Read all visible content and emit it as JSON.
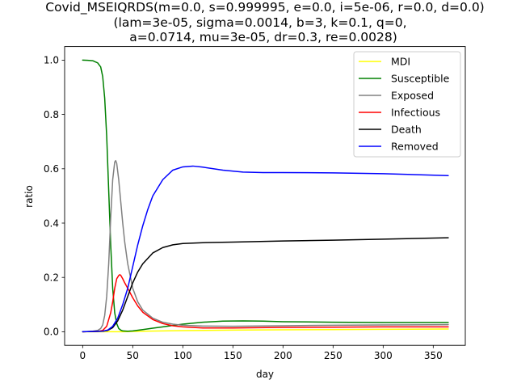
{
  "chart_data": {
    "type": "line",
    "title_lines": [
      "Covid_MSEIQRDS(m=0.0, s=0.999995, e=0.0, i=5e-06, r=0.0, d=0.0)",
      "(lam=3e-05, sigma=0.0014, b=3, k=0.1, q=0,",
      "a=0.0714, mu=3e-05, dr=0.3, re=0.0028)"
    ],
    "xlabel": "day",
    "ylabel": "ratio",
    "xlim": [
      -18,
      382
    ],
    "ylim": [
      -0.05,
      1.05
    ],
    "xticks": [
      0,
      50,
      100,
      150,
      200,
      250,
      300,
      350
    ],
    "yticks": [
      0.0,
      0.2,
      0.4,
      0.6,
      0.8,
      1.0
    ],
    "ytick_labels": [
      "0.0",
      "0.2",
      "0.4",
      "0.6",
      "0.8",
      "1.0"
    ],
    "grid": false,
    "legend_position": "top-right",
    "series": [
      {
        "name": "MDI",
        "color": "#ffff00",
        "x": [
          0,
          20,
          40,
          60,
          100,
          150,
          200,
          250,
          300,
          365
        ],
        "y": [
          0.0,
          0.0,
          0.0,
          0.002,
          0.004,
          0.006,
          0.007,
          0.008,
          0.009,
          0.01
        ]
      },
      {
        "name": "Susceptible",
        "color": "#008000",
        "x": [
          0,
          5,
          10,
          15,
          18,
          20,
          22,
          24,
          26,
          28,
          30,
          32,
          34,
          36,
          38,
          40,
          45,
          50,
          60,
          70,
          80,
          90,
          100,
          120,
          140,
          160,
          180,
          200,
          250,
          300,
          365
        ],
        "y": [
          1.0,
          0.9995,
          0.998,
          0.99,
          0.975,
          0.94,
          0.86,
          0.72,
          0.52,
          0.32,
          0.16,
          0.07,
          0.03,
          0.012,
          0.006,
          0.003,
          0.002,
          0.003,
          0.008,
          0.013,
          0.018,
          0.023,
          0.028,
          0.035,
          0.039,
          0.04,
          0.039,
          0.037,
          0.035,
          0.034,
          0.034
        ]
      },
      {
        "name": "Exposed",
        "color": "#808080",
        "x": [
          0,
          10,
          15,
          18,
          20,
          22,
          24,
          26,
          28,
          30,
          32,
          33,
          34,
          36,
          38,
          40,
          42,
          45,
          50,
          55,
          60,
          70,
          80,
          90,
          100,
          120,
          150,
          200,
          250,
          300,
          365
        ],
        "y": [
          0.0,
          0.002,
          0.005,
          0.012,
          0.025,
          0.06,
          0.13,
          0.25,
          0.42,
          0.56,
          0.625,
          0.63,
          0.62,
          0.56,
          0.48,
          0.4,
          0.33,
          0.25,
          0.16,
          0.11,
          0.08,
          0.05,
          0.035,
          0.028,
          0.024,
          0.021,
          0.02,
          0.022,
          0.024,
          0.025,
          0.026
        ]
      },
      {
        "name": "Infectious",
        "color": "#ff0000",
        "x": [
          0,
          15,
          20,
          24,
          28,
          30,
          32,
          34,
          36,
          37,
          38,
          40,
          42,
          45,
          50,
          55,
          60,
          70,
          80,
          90,
          100,
          120,
          150,
          200,
          250,
          300,
          365
        ],
        "y": [
          0.0,
          0.001,
          0.005,
          0.02,
          0.07,
          0.11,
          0.16,
          0.195,
          0.207,
          0.21,
          0.208,
          0.195,
          0.18,
          0.16,
          0.125,
          0.095,
          0.072,
          0.045,
          0.03,
          0.022,
          0.018,
          0.014,
          0.014,
          0.016,
          0.017,
          0.018,
          0.018
        ]
      },
      {
        "name": "Death",
        "color": "#000000",
        "x": [
          0,
          20,
          25,
          30,
          35,
          40,
          45,
          50,
          55,
          60,
          70,
          80,
          90,
          100,
          120,
          150,
          200,
          250,
          300,
          365
        ],
        "y": [
          0.0,
          0.002,
          0.005,
          0.015,
          0.04,
          0.08,
          0.13,
          0.18,
          0.22,
          0.25,
          0.29,
          0.31,
          0.32,
          0.325,
          0.328,
          0.33,
          0.334,
          0.337,
          0.341,
          0.346
        ]
      },
      {
        "name": "Removed",
        "color": "#0000ff",
        "x": [
          0,
          20,
          25,
          30,
          35,
          40,
          45,
          50,
          55,
          60,
          65,
          70,
          80,
          90,
          100,
          110,
          120,
          140,
          160,
          180,
          200,
          250,
          300,
          365
        ],
        "y": [
          0.0,
          0.002,
          0.006,
          0.02,
          0.05,
          0.1,
          0.16,
          0.24,
          0.32,
          0.39,
          0.45,
          0.5,
          0.56,
          0.595,
          0.607,
          0.61,
          0.606,
          0.595,
          0.588,
          0.586,
          0.586,
          0.585,
          0.582,
          0.575
        ]
      }
    ]
  }
}
